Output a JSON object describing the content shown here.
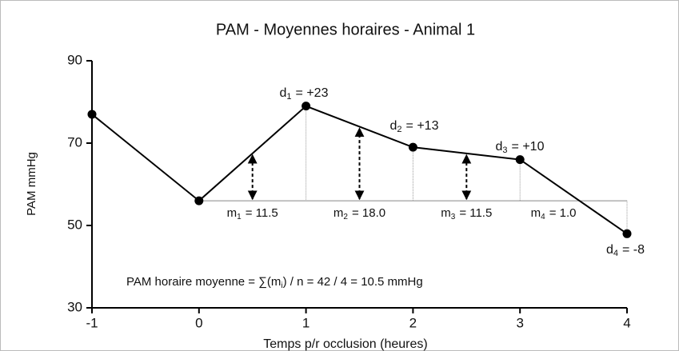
{
  "chart_data": {
    "type": "line",
    "title": "PAM - Moyennes horaires - Animal 1",
    "x_label": "Temps p/r occlusion (heures)",
    "y_label": "PAM mmHg",
    "x": [
      -1,
      0,
      1,
      2,
      3,
      4
    ],
    "values": [
      77,
      56,
      79,
      69,
      66,
      48
    ],
    "color": "#000000",
    "xlim": [
      -1,
      4
    ],
    "xticks": [
      -1,
      0,
      1,
      2,
      3,
      4
    ],
    "ylim": [
      30,
      90
    ],
    "yticks": [
      30,
      50,
      70,
      90
    ],
    "reference_line": 56,
    "differences": [
      {
        "symbol": "d",
        "index": "1",
        "label": "= +23"
      },
      {
        "symbol": "d",
        "index": "2",
        "label": "= +13"
      },
      {
        "symbol": "d",
        "index": "3",
        "label": "= +10"
      },
      {
        "symbol": "d",
        "index": "4",
        "label": "= -8"
      }
    ],
    "means": [
      {
        "x": 0.5,
        "symbol": "m",
        "index": "1",
        "value": 11.5,
        "label": "= 11.5"
      },
      {
        "x": 1.5,
        "symbol": "m",
        "index": "2",
        "value": 18.0,
        "label": "= 18.0"
      },
      {
        "x": 2.5,
        "symbol": "m",
        "index": "3",
        "value": 11.5,
        "label": "= 11.5"
      },
      {
        "x": 3.5,
        "symbol": "m",
        "index": "4",
        "value": 1.0,
        "label": "= 1.0"
      }
    ],
    "formula": {
      "before": "PAM horaire moyenne = ∑(m",
      "sub": "i",
      "after": ") / n = 42 / 4 = 10.5 mmHg"
    }
  }
}
